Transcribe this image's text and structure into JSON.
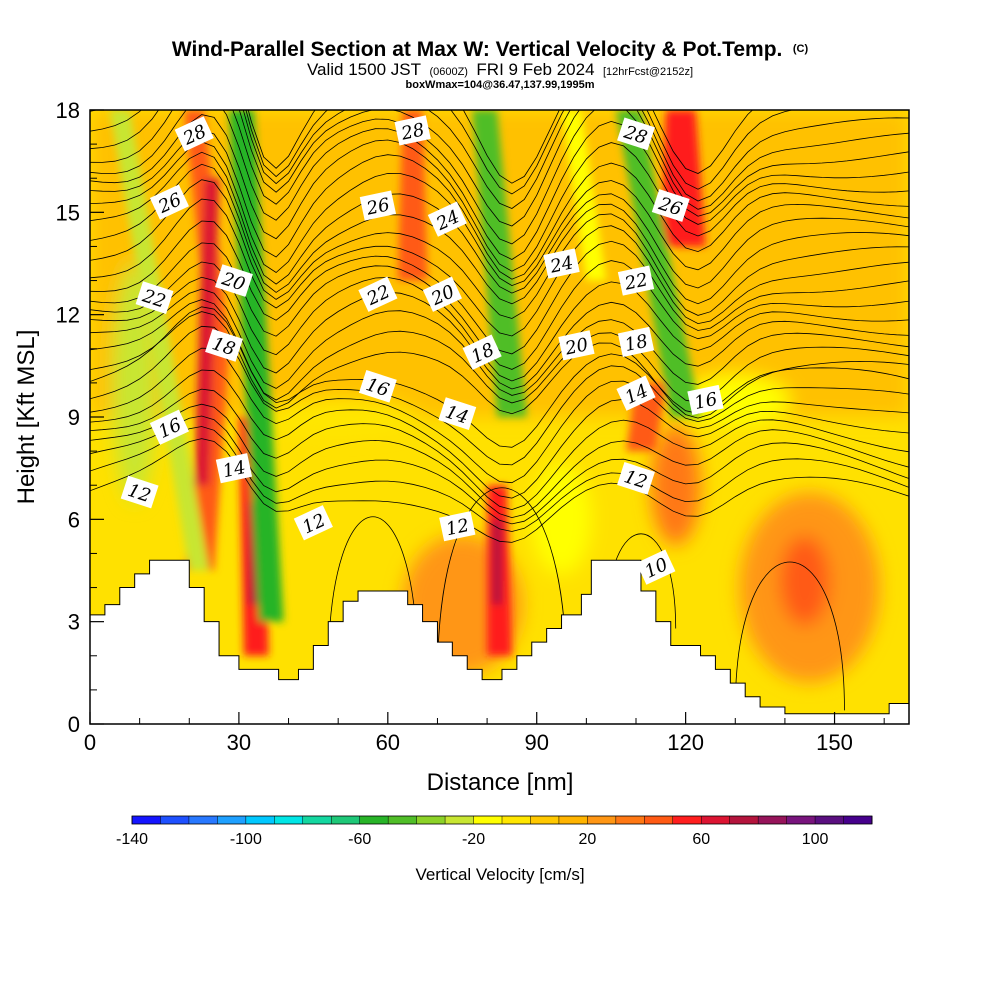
{
  "title": {
    "main": "Wind-Parallel Section at Max W: Vertical Velocity & Pot.Temp.",
    "copyright": "(C)",
    "line2_valid": "Valid 1500 JST",
    "line2_utc": "(0600Z)",
    "line2_date": "FRI 9 Feb 2024",
    "line2_fcst": "[12hrFcst@2152z]",
    "line3": "boxWmax=104@36.47,137.99,1995m"
  },
  "colorbar": {
    "title": "Vertical Velocity [cm/s]",
    "tick_labels": [
      "-140",
      "-100",
      "-60",
      "-20",
      "20",
      "60",
      "100"
    ],
    "tick_values": [
      -140,
      -100,
      -60,
      -20,
      20,
      60,
      100
    ],
    "min": -140,
    "max": 120,
    "step": 10,
    "colors": [
      "#1414ff",
      "#1e50ff",
      "#2878ff",
      "#1ea0ff",
      "#00c8ff",
      "#00e6e6",
      "#14d7a0",
      "#1ec878",
      "#28b428",
      "#50be28",
      "#8cd228",
      "#c8e632",
      "#ffff00",
      "#ffe600",
      "#ffc800",
      "#ffb400",
      "#ff9614",
      "#ff7814",
      "#ff5a14",
      "#ff1e1e",
      "#dc1432",
      "#b4143c",
      "#96145a",
      "#78147d",
      "#5a0f80",
      "#46008c"
    ]
  },
  "chart_data": {
    "type": "heatmap",
    "title": "Wind-Parallel Section at Max W: Vertical Velocity & Pot.Temp.",
    "xlabel": "Distance [nm]",
    "ylabel": "Height [Kft MSL]",
    "xlim": [
      0,
      165
    ],
    "ylim": [
      0,
      18
    ],
    "x_ticks": [
      0,
      30,
      60,
      90,
      120,
      150
    ],
    "x_tick_labels": [
      "0",
      "30",
      "60",
      "90",
      "120",
      "150"
    ],
    "y_ticks": [
      0,
      3,
      6,
      9,
      12,
      15,
      18
    ],
    "y_tick_labels": [
      "0",
      "3",
      "6",
      "9",
      "12",
      "15",
      "18"
    ],
    "color_variable": "Vertical Velocity [cm/s]",
    "contour_variable": "Pot.Temp. (C)",
    "contour_levels": [
      10,
      12,
      14,
      16,
      18,
      20,
      22,
      24,
      26,
      28
    ],
    "contour_labels": [
      {
        "text": "28",
        "x": 21,
        "y": 17.3
      },
      {
        "text": "28",
        "x": 65,
        "y": 17.4
      },
      {
        "text": "28",
        "x": 110,
        "y": 17.3
      },
      {
        "text": "26",
        "x": 16,
        "y": 15.3
      },
      {
        "text": "26",
        "x": 58,
        "y": 15.2
      },
      {
        "text": "26",
        "x": 117,
        "y": 15.2
      },
      {
        "text": "24",
        "x": 72,
        "y": 14.8
      },
      {
        "text": "24",
        "x": 95,
        "y": 13.5
      },
      {
        "text": "22",
        "x": 13,
        "y": 12.5
      },
      {
        "text": "22",
        "x": 58,
        "y": 12.6
      },
      {
        "text": "22",
        "x": 110,
        "y": 13.0
      },
      {
        "text": "20",
        "x": 29,
        "y": 13.0
      },
      {
        "text": "20",
        "x": 71,
        "y": 12.6
      },
      {
        "text": "20",
        "x": 98,
        "y": 11.1
      },
      {
        "text": "18",
        "x": 27,
        "y": 11.1
      },
      {
        "text": "18",
        "x": 79,
        "y": 10.9
      },
      {
        "text": "18",
        "x": 110,
        "y": 11.2
      },
      {
        "text": "16",
        "x": 58,
        "y": 9.9
      },
      {
        "text": "16",
        "x": 16,
        "y": 8.7
      },
      {
        "text": "16",
        "x": 124,
        "y": 9.5
      },
      {
        "text": "14",
        "x": 74,
        "y": 9.1
      },
      {
        "text": "14",
        "x": 110,
        "y": 9.7
      },
      {
        "text": "14",
        "x": 29,
        "y": 7.5
      },
      {
        "text": "12",
        "x": 10,
        "y": 6.8
      },
      {
        "text": "12",
        "x": 45,
        "y": 5.9
      },
      {
        "text": "12",
        "x": 74,
        "y": 5.8
      },
      {
        "text": "12",
        "x": 110,
        "y": 7.2
      },
      {
        "text": "10",
        "x": 114,
        "y": 4.6
      }
    ],
    "updraft_maxima": [
      {
        "x": 21,
        "height_kft": 14,
        "w_cms": 60
      },
      {
        "x": 33,
        "height_kft": 4.5,
        "w_cms": 70
      },
      {
        "x": 82,
        "height_kft": 4.8,
        "w_cms": 60
      },
      {
        "x": 64,
        "height_kft": 17,
        "w_cms": 50
      },
      {
        "x": 120,
        "height_kft": 17,
        "w_cms": 50
      },
      {
        "x": 144,
        "height_kft": 4.2,
        "w_cms": 40
      }
    ],
    "downdraft_bands": [
      {
        "x_bottom": 20,
        "x_top": 5,
        "w_cms": -40
      },
      {
        "x_bottom": 37,
        "x_top": 29,
        "w_cms": -60
      },
      {
        "x_bottom": 86,
        "x_top": 79,
        "w_cms": -50
      },
      {
        "x_bottom": 120,
        "x_top": 108,
        "w_cms": -50
      }
    ],
    "terrain_top_kft": [
      [
        0,
        3.2
      ],
      [
        3,
        3.5
      ],
      [
        6,
        4.0
      ],
      [
        9,
        4.4
      ],
      [
        12,
        4.8
      ],
      [
        17,
        4.8
      ],
      [
        20,
        4.0
      ],
      [
        23,
        3.0
      ],
      [
        26,
        2.0
      ],
      [
        30,
        1.6
      ],
      [
        35,
        1.6
      ],
      [
        38,
        1.3
      ],
      [
        42,
        1.6
      ],
      [
        45,
        2.3
      ],
      [
        48,
        3.0
      ],
      [
        51,
        3.6
      ],
      [
        54,
        3.9
      ],
      [
        60,
        3.9
      ],
      [
        64,
        3.5
      ],
      [
        67,
        3.0
      ],
      [
        70,
        2.4
      ],
      [
        73,
        2.0
      ],
      [
        76,
        1.6
      ],
      [
        79,
        1.3
      ],
      [
        83,
        1.6
      ],
      [
        86,
        2.0
      ],
      [
        89,
        2.4
      ],
      [
        92,
        2.8
      ],
      [
        95,
        3.2
      ],
      [
        99,
        3.8
      ],
      [
        101,
        4.8
      ],
      [
        108,
        4.8
      ],
      [
        111,
        3.9
      ],
      [
        114,
        3.0
      ],
      [
        117,
        2.3
      ],
      [
        123,
        2.0
      ],
      [
        126,
        1.6
      ],
      [
        129,
        1.2
      ],
      [
        132,
        0.8
      ],
      [
        135,
        0.5
      ],
      [
        140,
        0.3
      ],
      [
        158,
        0.3
      ],
      [
        161,
        0.6
      ],
      [
        165,
        0.6
      ]
    ]
  }
}
